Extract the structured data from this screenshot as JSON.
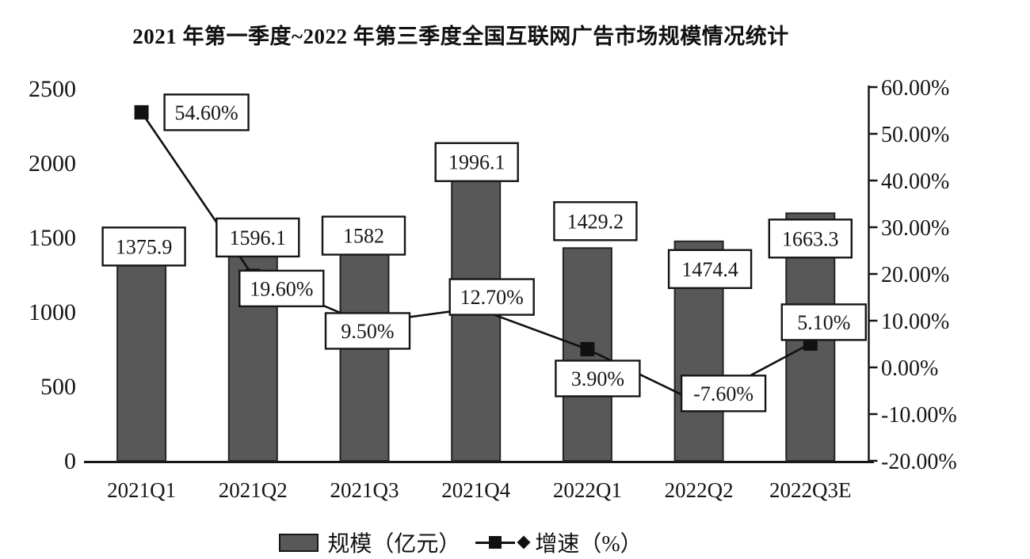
{
  "title": "2021 年第一季度~2022 年第三季度全国互联网广告市场规模情况统计",
  "legend": {
    "bar_label": "规模（亿元）",
    "line_label": "增速（%）"
  },
  "colors": {
    "bar_fill": "#585858",
    "bar_stroke": "#242424",
    "line": "#111111",
    "box_fill": "#ffffff",
    "box_border": "#161616",
    "axis": "#161616",
    "text": "#161616"
  },
  "chart_data": {
    "type": "bar",
    "subtype": "combo bar+line, dual y-axis",
    "title": "2021 年第一季度~2022 年第三季度全国互联网广告市场规模情况统计",
    "categories": [
      "2021Q1",
      "2021Q2",
      "2021Q3",
      "2021Q4",
      "2022Q1",
      "2022Q2",
      "2022Q3E"
    ],
    "series": [
      {
        "name": "规模（亿元）",
        "type": "bar",
        "axis": "left",
        "values": [
          1375.9,
          1596.1,
          1582,
          1996.1,
          1429.2,
          1474.4,
          1663.3
        ],
        "labels": [
          "1375.9",
          "1596.1",
          "1582",
          "1996.1",
          "1429.2",
          "1474.4",
          "1663.3"
        ]
      },
      {
        "name": "增速（%）",
        "type": "line",
        "axis": "right",
        "marker": "filled-square",
        "values": [
          54.6,
          19.6,
          9.5,
          12.7,
          3.9,
          -7.6,
          5.1
        ],
        "labels": [
          "54.60%",
          "19.60%",
          "9.50%",
          "12.70%",
          "3.90%",
          "-7.60%",
          "5.10%"
        ]
      }
    ],
    "left_axis": {
      "range": [
        0,
        2500
      ],
      "ticks": [
        0,
        500,
        1000,
        1500,
        2000,
        2500
      ],
      "labels": [
        "0",
        "500",
        "1000",
        "1500",
        "2000",
        "2500"
      ]
    },
    "right_axis": {
      "range": [
        -20,
        60
      ],
      "ticks": [
        60,
        50,
        40,
        30,
        20,
        10,
        0,
        -10,
        -20
      ],
      "labels": [
        "60.00%",
        "50.00%",
        "40.00%",
        "30.00%",
        "20.00%",
        "10.00%",
        "0.00%",
        "-10.00%",
        "-20.00%"
      ]
    },
    "grid": false,
    "legend_position": "bottom",
    "data_labels": "boxed, white background with black border"
  }
}
